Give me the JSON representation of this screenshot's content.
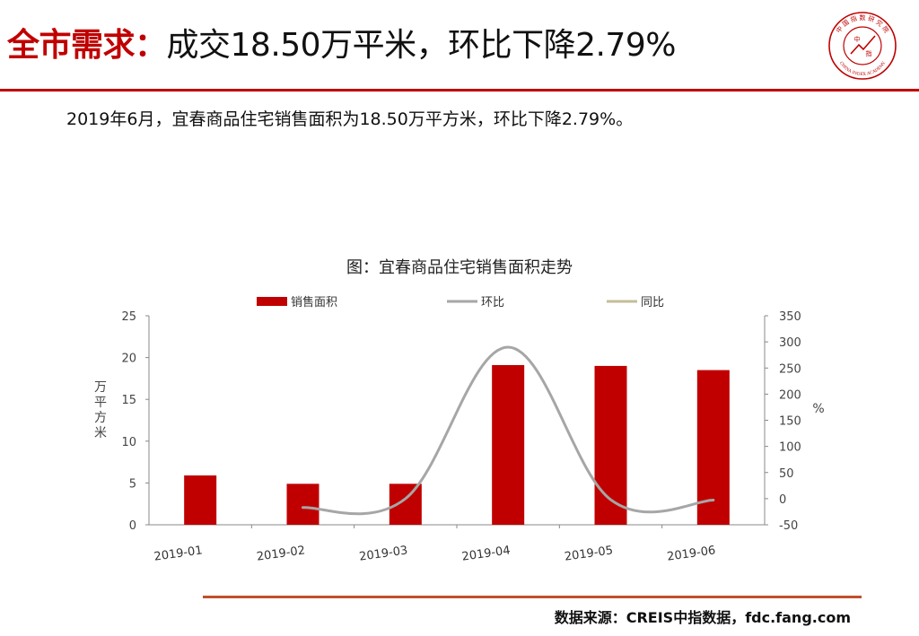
{
  "header": {
    "title_lead": "全市需求：",
    "title_rest": "成交18.50万平米，环比下降2.79%"
  },
  "logo": {
    "text_top": "中国指数研究院",
    "text_bottom": "CHINA INDEX ACADEMY",
    "center_text": [
      "中",
      "指"
    ],
    "color": "#c00000"
  },
  "summary": "2019年6月，宜春商品住宅销售面积为18.50万平方米，环比下降2.79%。",
  "footer": {
    "source": "数据来源：CREIS中指数据，fdc.fang.com"
  },
  "chart_data": {
    "type": "bar",
    "title": "图：宜春商品住宅销售面积走势",
    "categories": [
      "2019-01",
      "2019-02",
      "2019-03",
      "2019-04",
      "2019-05",
      "2019-06"
    ],
    "series": [
      {
        "name": "销售面积",
        "type": "bar",
        "axis": "left",
        "color": "#c00000",
        "values": [
          5.9,
          4.9,
          4.9,
          19.1,
          19.0,
          18.5
        ]
      },
      {
        "name": "环比",
        "type": "line",
        "axis": "right",
        "color": "#a6a6a6",
        "values": [
          null,
          -17,
          0,
          290,
          -2,
          -2.79
        ]
      },
      {
        "name": "同比",
        "type": "line",
        "axis": "right",
        "color": "#c4bd97",
        "values": [
          null,
          null,
          null,
          null,
          null,
          null
        ]
      }
    ],
    "ylabel": "万平方米",
    "y2label": "%",
    "ylim": [
      0,
      25
    ],
    "yticks": [
      0,
      5,
      10,
      15,
      20,
      25
    ],
    "y2lim": [
      -50,
      350
    ],
    "y2ticks": [
      -50,
      0,
      50,
      100,
      150,
      200,
      250,
      300,
      350
    ],
    "legend": "top",
    "grid": false
  }
}
